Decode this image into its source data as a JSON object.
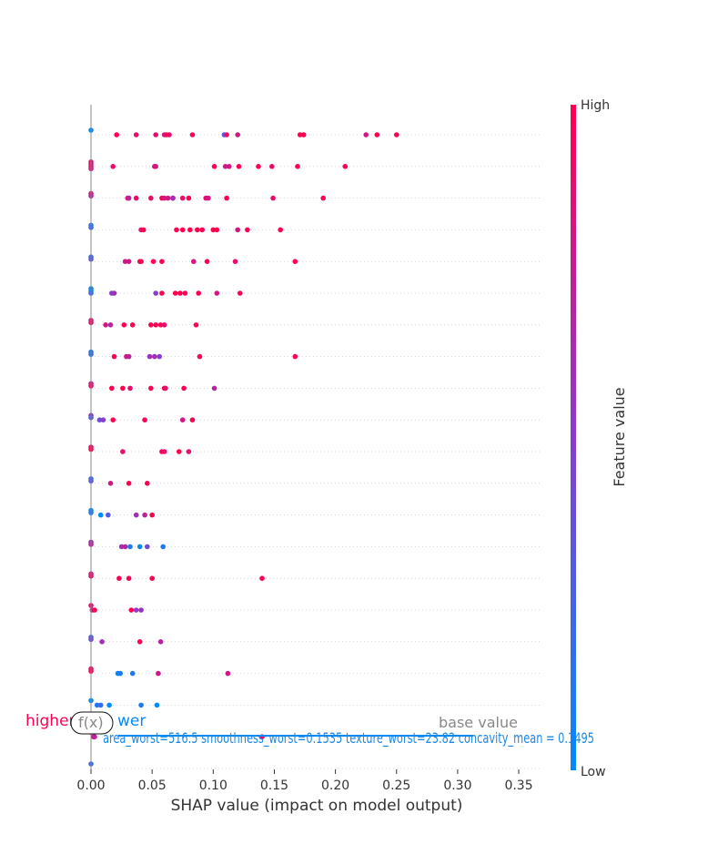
{
  "chart_data": {
    "type": "scatter",
    "xlabel": "SHAP value (impact on model output)",
    "xlim": [
      0.0,
      0.37
    ],
    "xticks": [
      0.0,
      0.05,
      0.1,
      0.15,
      0.2,
      0.25,
      0.3,
      0.35
    ],
    "xtick_labels": [
      "0.00",
      "0.05",
      "0.10",
      "0.15",
      "0.20",
      "0.25",
      "0.30",
      "0.35"
    ],
    "colorbar": {
      "label": "Feature value",
      "high_label": "High",
      "low_label": "Low",
      "low_color": "#008bfb",
      "high_color": "#ff0051"
    },
    "rows": [
      {
        "points": [
          [
            0.0,
            0.0
          ],
          [
            0.021,
            1
          ],
          [
            0.037,
            0.9
          ],
          [
            0.053,
            0.9
          ],
          [
            0.06,
            0.8
          ],
          [
            0.062,
            1
          ],
          [
            0.064,
            0.9
          ],
          [
            0.083,
            1
          ],
          [
            0.109,
            0.3
          ],
          [
            0.111,
            0.9
          ],
          [
            0.12,
            0.8
          ],
          [
            0.171,
            1
          ],
          [
            0.174,
            1
          ],
          [
            0.225,
            0.8
          ],
          [
            0.234,
            1
          ],
          [
            0.25,
            1
          ]
        ]
      },
      {
        "points": [
          [
            0.0,
            0.9
          ],
          [
            0.0,
            0.8
          ],
          [
            0.0,
            0.9
          ],
          [
            0.0,
            0.8
          ],
          [
            0.018,
            0.9
          ],
          [
            0.052,
            0.9
          ],
          [
            0.053,
            0.8
          ],
          [
            0.101,
            1
          ],
          [
            0.11,
            0.8
          ],
          [
            0.113,
            0.8
          ],
          [
            0.121,
            1
          ],
          [
            0.137,
            1
          ],
          [
            0.148,
            0.9
          ],
          [
            0.169,
            1
          ],
          [
            0.208,
            1
          ]
        ]
      },
      {
        "points": [
          [
            0.0,
            0.8
          ],
          [
            0.0,
            0.7
          ],
          [
            0.03,
            0.9
          ],
          [
            0.031,
            0.7
          ],
          [
            0.037,
            0.9
          ],
          [
            0.049,
            0.9
          ],
          [
            0.058,
            1
          ],
          [
            0.06,
            0.8
          ],
          [
            0.063,
            0.8
          ],
          [
            0.067,
            1
          ],
          [
            0.067,
            0.6
          ],
          [
            0.075,
            0.9
          ],
          [
            0.08,
            1
          ],
          [
            0.094,
            0.9
          ],
          [
            0.096,
            0.8
          ],
          [
            0.111,
            1
          ],
          [
            0.149,
            0.9
          ],
          [
            0.19,
            1
          ]
        ]
      },
      {
        "points": [
          [
            0.0,
            0.1
          ],
          [
            0.0,
            0.2
          ],
          [
            0.041,
            0.9
          ],
          [
            0.043,
            1
          ],
          [
            0.07,
            1
          ],
          [
            0.075,
            1
          ],
          [
            0.081,
            1
          ],
          [
            0.087,
            1
          ],
          [
            0.091,
            1
          ],
          [
            0.1,
            1
          ],
          [
            0.103,
            1
          ],
          [
            0.12,
            0.8
          ],
          [
            0.128,
            1
          ],
          [
            0.155,
            1
          ]
        ]
      },
      {
        "points": [
          [
            0.0,
            0.2
          ],
          [
            0.0,
            0.3
          ],
          [
            0.028,
            0.8
          ],
          [
            0.031,
            0.8
          ],
          [
            0.04,
            0.9
          ],
          [
            0.041,
            1
          ],
          [
            0.051,
            1
          ],
          [
            0.058,
            1
          ],
          [
            0.084,
            0.8
          ],
          [
            0.095,
            1
          ],
          [
            0.118,
            0.9
          ],
          [
            0.167,
            1
          ]
        ]
      },
      {
        "points": [
          [
            0.0,
            0.1
          ],
          [
            0.0,
            0.0
          ],
          [
            0.0,
            0.2
          ],
          [
            0.017,
            0.5
          ],
          [
            0.019,
            0.6
          ],
          [
            0.053,
            0.5
          ],
          [
            0.058,
            1
          ],
          [
            0.069,
            1
          ],
          [
            0.073,
            1
          ],
          [
            0.077,
            1
          ],
          [
            0.088,
            1
          ],
          [
            0.103,
            0.8
          ],
          [
            0.122,
            1
          ]
        ]
      },
      {
        "points": [
          [
            0.0,
            0.8
          ],
          [
            0.0,
            0.9
          ],
          [
            0.012,
            0.8
          ],
          [
            0.016,
            0.7
          ],
          [
            0.027,
            1
          ],
          [
            0.034,
            1
          ],
          [
            0.049,
            1
          ],
          [
            0.053,
            1
          ],
          [
            0.057,
            1
          ],
          [
            0.06,
            0.9
          ],
          [
            0.086,
            1
          ]
        ]
      },
      {
        "points": [
          [
            0.0,
            0.1
          ],
          [
            0.0,
            0.2
          ],
          [
            0.019,
            1
          ],
          [
            0.029,
            0.8
          ],
          [
            0.031,
            0.7
          ],
          [
            0.048,
            0.6
          ],
          [
            0.052,
            0.6
          ],
          [
            0.056,
            0.5
          ],
          [
            0.089,
            1
          ],
          [
            0.167,
            1
          ]
        ]
      },
      {
        "points": [
          [
            0.0,
            0.8
          ],
          [
            0.0,
            0.9
          ],
          [
            0.017,
            1
          ],
          [
            0.026,
            1
          ],
          [
            0.032,
            0.9
          ],
          [
            0.049,
            1
          ],
          [
            0.06,
            1
          ],
          [
            0.061,
            0.9
          ],
          [
            0.076,
            1
          ],
          [
            0.101,
            0.7
          ]
        ]
      },
      {
        "points": [
          [
            0.0,
            0.5
          ],
          [
            0.0,
            0.3
          ],
          [
            0.007,
            0.4
          ],
          [
            0.01,
            0.5
          ],
          [
            0.018,
            1
          ],
          [
            0.044,
            1
          ],
          [
            0.075,
            0.8
          ],
          [
            0.083,
            1
          ]
        ]
      },
      {
        "points": [
          [
            0.0,
            0.9
          ],
          [
            0.0,
            1
          ],
          [
            0.026,
            0.9
          ],
          [
            0.058,
            1
          ],
          [
            0.06,
            0.9
          ],
          [
            0.072,
            1
          ],
          [
            0.08,
            0.9
          ]
        ]
      },
      {
        "points": [
          [
            0.0,
            0.2
          ],
          [
            0.0,
            0.3
          ],
          [
            0.016,
            0.8
          ],
          [
            0.031,
            1
          ],
          [
            0.046,
            1
          ]
        ]
      },
      {
        "points": [
          [
            0.0,
            0.0
          ],
          [
            0.0,
            0.1
          ],
          [
            0.008,
            0.0
          ],
          [
            0.014,
            0.3
          ],
          [
            0.037,
            0.6
          ],
          [
            0.044,
            0.7
          ],
          [
            0.05,
            1
          ]
        ]
      },
      {
        "points": [
          [
            0.0,
            0.6
          ],
          [
            0.0,
            0.7
          ],
          [
            0.025,
            0.6
          ],
          [
            0.028,
            0.7
          ],
          [
            0.032,
            0.1
          ],
          [
            0.04,
            0.0
          ],
          [
            0.046,
            0.4
          ],
          [
            0.059,
            0.1
          ]
        ]
      },
      {
        "points": [
          [
            0.0,
            0.8
          ],
          [
            0.0,
            0.9
          ],
          [
            0.023,
            1
          ],
          [
            0.031,
            1
          ],
          [
            0.05,
            1
          ],
          [
            0.14,
            1
          ]
        ]
      },
      {
        "points": [
          [
            0.0,
            0.9
          ],
          [
            0.001,
            0.8
          ],
          [
            0.003,
            1
          ],
          [
            0.033,
            1
          ],
          [
            0.037,
            0.5
          ],
          [
            0.041,
            0.6
          ]
        ]
      },
      {
        "points": [
          [
            0.0,
            0.3
          ],
          [
            0.0,
            0.4
          ],
          [
            0.009,
            0.6
          ],
          [
            0.04,
            1
          ],
          [
            0.057,
            0.7
          ]
        ]
      },
      {
        "points": [
          [
            0.0,
            0.9
          ],
          [
            0.0,
            1
          ],
          [
            0.022,
            0.0
          ],
          [
            0.024,
            0.1
          ],
          [
            0.034,
            0.1
          ],
          [
            0.055,
            0.8
          ],
          [
            0.112,
            0.8
          ]
        ]
      },
      {
        "points": [
          [
            0.0,
            0.0
          ],
          [
            0.005,
            0.1
          ],
          [
            0.008,
            0.2
          ],
          [
            0.015,
            0.0
          ],
          [
            0.041,
            0.1
          ],
          [
            0.054,
            0.0
          ]
        ]
      },
      {
        "points": [
          [
            0.0,
            0.8
          ],
          [
            0.002,
            0.9
          ],
          [
            0.003,
            0.7
          ],
          [
            0.14,
            1
          ]
        ]
      },
      {
        "points": [
          [
            0.0,
            0.2
          ]
        ]
      }
    ],
    "overlay": {
      "higher_label": "higher",
      "lower_label": "wer",
      "fx_label": "f(x)",
      "base_value_label": "base value",
      "feature_text": "area_worst=516.5 smoothness_worst=0.1535 texture_worst=23.82 concavity_mean = 0.1495"
    }
  }
}
